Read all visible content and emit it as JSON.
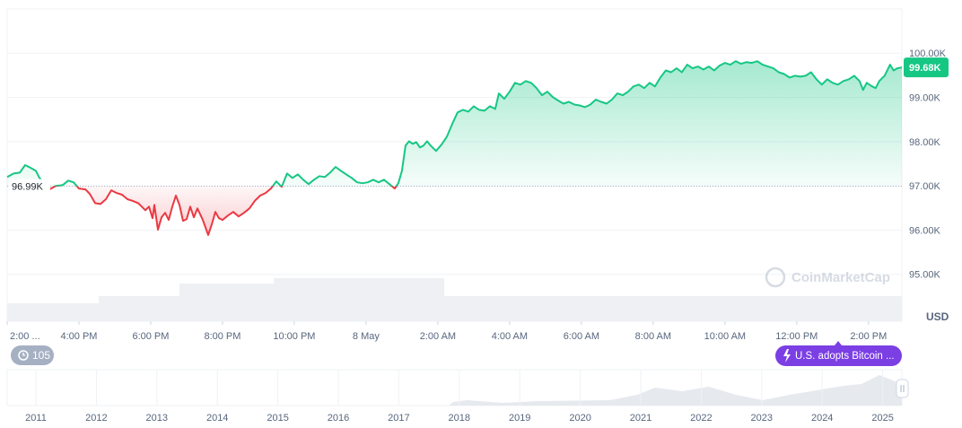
{
  "chart_data": {
    "type": "line",
    "x": [
      0,
      0.18,
      0.35,
      0.5,
      0.65,
      0.8,
      0.9,
      1.18,
      1.35,
      1.55,
      1.7,
      1.85,
      2,
      2.18,
      2.3,
      2.45,
      2.6,
      2.75,
      2.9,
      3.05,
      3.2,
      3.35,
      3.5,
      3.65,
      3.75,
      3.85,
      3.95,
      4.05,
      4.1,
      4.2,
      4.3,
      4.4,
      4.5,
      4.6,
      4.7,
      4.8,
      4.9,
      5,
      5.1,
      5.2,
      5.3,
      5.45,
      5.6,
      5.7,
      5.8,
      5.9,
      6,
      6.15,
      6.3,
      6.45,
      6.6,
      6.75,
      6.9,
      7.05,
      7.2,
      7.35,
      7.5,
      7.65,
      7.8,
      7.95,
      8.1,
      8.25,
      8.4,
      8.55,
      8.7,
      8.85,
      9,
      9.15,
      9.3,
      9.45,
      9.6,
      9.75,
      9.9,
      10.05,
      10.2,
      10.35,
      10.5,
      10.65,
      10.8,
      10.9,
      11,
      11.1,
      11.2,
      11.3,
      11.4,
      11.5,
      11.6,
      11.7,
      11.8,
      11.95,
      12.1,
      12.25,
      12.4,
      12.55,
      12.7,
      12.85,
      13,
      13.15,
      13.3,
      13.45,
      13.6,
      13.7,
      13.85,
      14,
      14.15,
      14.3,
      14.45,
      14.6,
      14.75,
      14.9,
      15.05,
      15.2,
      15.35,
      15.5,
      15.65,
      15.8,
      15.95,
      16.1,
      16.25,
      16.4,
      16.55,
      16.7,
      16.85,
      17,
      17.15,
      17.3,
      17.45,
      17.6,
      17.75,
      17.9,
      18.05,
      18.2,
      18.35,
      18.5,
      18.65,
      18.8,
      18.95,
      19.1,
      19.25,
      19.4,
      19.55,
      19.7,
      19.85,
      20,
      20.15,
      20.3,
      20.45,
      20.6,
      20.75,
      20.9,
      21.05,
      21.2,
      21.35,
      21.5,
      21.65,
      21.8,
      21.95,
      22.1,
      22.25,
      22.4,
      22.55,
      22.7,
      22.85,
      23,
      23.15,
      23.3,
      23.45,
      23.6,
      23.75,
      23.85,
      23.95,
      24.1,
      24.2,
      24.3,
      24.45,
      24.6,
      24.7,
      24.8,
      24.93
    ],
    "values": [
      97200,
      97280,
      97300,
      97470,
      97410,
      97340,
      97180,
      96920,
      97000,
      97020,
      97120,
      97080,
      96940,
      96920,
      96820,
      96610,
      96590,
      96700,
      96900,
      96840,
      96800,
      96700,
      96660,
      96610,
      96530,
      96450,
      96530,
      96270,
      96570,
      96010,
      96290,
      96390,
      96230,
      96530,
      96780,
      96570,
      96210,
      96250,
      96530,
      96290,
      96490,
      96230,
      95890,
      96130,
      96410,
      96270,
      96230,
      96330,
      96410,
      96310,
      96390,
      96490,
      96660,
      96780,
      96840,
      96940,
      97100,
      96980,
      97280,
      97180,
      97260,
      97140,
      97040,
      97140,
      97220,
      97200,
      97300,
      97430,
      97340,
      97260,
      97180,
      97080,
      97060,
      97080,
      97140,
      97080,
      97140,
      97040,
      96940,
      97060,
      97340,
      97910,
      98010,
      97950,
      97990,
      97870,
      97910,
      98010,
      97910,
      97790,
      97930,
      98110,
      98400,
      98660,
      98720,
      98680,
      98800,
      98720,
      98700,
      98800,
      98740,
      99090,
      98970,
      99130,
      99330,
      99290,
      99370,
      99330,
      99210,
      99050,
      99130,
      99010,
      98930,
      98860,
      98900,
      98840,
      98820,
      98780,
      98840,
      98950,
      98900,
      98860,
      98950,
      99090,
      99050,
      99130,
      99250,
      99290,
      99210,
      99330,
      99250,
      99450,
      99610,
      99570,
      99660,
      99570,
      99740,
      99660,
      99700,
      99630,
      99700,
      99610,
      99720,
      99780,
      99740,
      99820,
      99760,
      99800,
      99780,
      99820,
      99740,
      99700,
      99660,
      99570,
      99530,
      99450,
      99490,
      99470,
      99490,
      99570,
      99410,
      99290,
      99410,
      99330,
      99290,
      99370,
      99410,
      99490,
      99370,
      99170,
      99330,
      99250,
      99210,
      99370,
      99490,
      99740,
      99610,
      99660,
      99680
    ],
    "colors": {
      "up": "#16c784",
      "down": "#ea3943"
    },
    "baseline": {
      "value": 96990,
      "label": "96.99K"
    },
    "current": {
      "value": 99680,
      "label": "99.68K"
    },
    "xlim": [
      0,
      24.93
    ],
    "xticks": [
      {
        "value": 0,
        "label": "2:00 ..."
      },
      {
        "value": 2,
        "label": "4:00 PM"
      },
      {
        "value": 4,
        "label": "6:00 PM"
      },
      {
        "value": 6,
        "label": "8:00 PM"
      },
      {
        "value": 8,
        "label": "10:00 PM"
      },
      {
        "value": 10,
        "label": "8 May"
      },
      {
        "value": 12,
        "label": "2:00 AM"
      },
      {
        "value": 14,
        "label": "4:00 AM"
      },
      {
        "value": 16,
        "label": "6:00 AM"
      },
      {
        "value": 18,
        "label": "8:00 AM"
      },
      {
        "value": 20,
        "label": "10:00 AM"
      },
      {
        "value": 22,
        "label": "12:00 PM"
      },
      {
        "value": 24,
        "label": "2:00 PM"
      }
    ],
    "ylim": [
      93940,
      101000
    ],
    "yticks": [
      {
        "value": 95000,
        "label": "95.00K"
      },
      {
        "value": 96000,
        "label": "96.00K"
      },
      {
        "value": 97000,
        "label": "97.00K"
      },
      {
        "value": 98000,
        "label": "98.00K"
      },
      {
        "value": 99000,
        "label": "99.00K"
      },
      {
        "value": 100000,
        "label": "100.00K"
      }
    ],
    "grid": true,
    "y_unit": "USD",
    "watermark": "CoinMarketCap",
    "count_badge": 105,
    "event_badge": "U.S. adopts Bitcoin ...",
    "navigator_years": [
      "2011",
      "2012",
      "2013",
      "2014",
      "2015",
      "2016",
      "2017",
      "2018",
      "2019",
      "2020",
      "2021",
      "2022",
      "2023",
      "2024",
      "2025"
    ]
  }
}
